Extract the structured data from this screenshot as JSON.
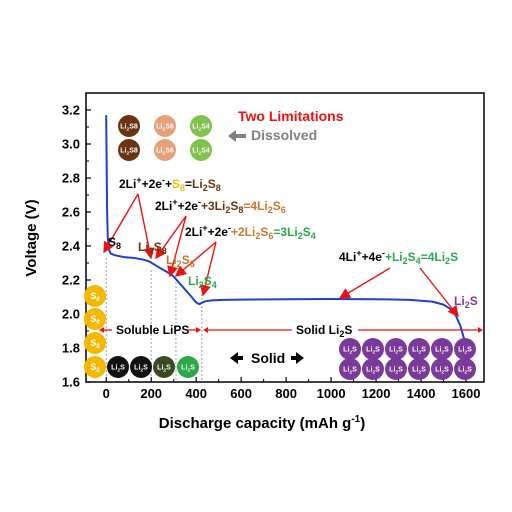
{
  "chart_data": {
    "type": "line",
    "title": "",
    "xlabel": "Discharge capacity (mAh g",
    "xlabel_sup": "-1",
    "xlabel_tail": ")",
    "ylabel": "Voltage (V)",
    "xlim": [
      -90,
      1680
    ],
    "ylim": [
      1.6,
      3.3
    ],
    "xticks": [
      0,
      200,
      400,
      600,
      800,
      1000,
      1200,
      1400,
      1600
    ],
    "yticks": [
      1.6,
      1.8,
      2.0,
      2.2,
      2.4,
      2.6,
      2.8,
      3.0,
      3.2
    ],
    "ytick_labels": [
      "1.6",
      "1.8",
      "2.0",
      "2.2",
      "2.4",
      "2.6",
      "2.8",
      "3.0",
      "3.2"
    ],
    "grid": false,
    "series": [
      {
        "color": "#1f3fd6",
        "points": [
          [
            0,
            3.17
          ],
          [
            2,
            2.85
          ],
          [
            4,
            2.6
          ],
          [
            7,
            2.45
          ],
          [
            12,
            2.38
          ],
          [
            20,
            2.355
          ],
          [
            40,
            2.345
          ],
          [
            80,
            2.335
          ],
          [
            120,
            2.33
          ],
          [
            160,
            2.322
          ],
          [
            190,
            2.31
          ],
          [
            215,
            2.29
          ],
          [
            240,
            2.27
          ],
          [
            260,
            2.255
          ],
          [
            280,
            2.24
          ],
          [
            300,
            2.22
          ],
          [
            320,
            2.19
          ],
          [
            340,
            2.16
          ],
          [
            360,
            2.13
          ],
          [
            380,
            2.1
          ],
          [
            395,
            2.075
          ],
          [
            405,
            2.063
          ],
          [
            415,
            2.058
          ],
          [
            425,
            2.066
          ],
          [
            440,
            2.075
          ],
          [
            470,
            2.08
          ],
          [
            520,
            2.083
          ],
          [
            600,
            2.085
          ],
          [
            800,
            2.087
          ],
          [
            1000,
            2.088
          ],
          [
            1200,
            2.087
          ],
          [
            1350,
            2.083
          ],
          [
            1450,
            2.073
          ],
          [
            1500,
            2.055
          ],
          [
            1530,
            2.03
          ],
          [
            1555,
            1.99
          ],
          [
            1575,
            1.93
          ],
          [
            1590,
            1.86
          ],
          [
            1600,
            1.79
          ]
        ]
      }
    ],
    "guide_lines_x": [
      0,
      200,
      310,
      425
    ]
  },
  "annotations": {
    "two_limitations": "Two Limitations",
    "dissolved": "Dissolved",
    "solid": "Solid",
    "soluble": "Soluble LiPS",
    "solid_li2s_main": "Solid Li",
    "solid_li2s_sub": "2",
    "solid_li2s_tail": "S",
    "colors": {
      "red": "#ee1111",
      "gray": "#808080",
      "s8_yellow": "#f5b800",
      "li2s8_brown": "#6b3410",
      "li2s6_orange": "#c8772c",
      "li2s4_green": "#2aa84a",
      "li2s_purple": "#7a3a9a"
    },
    "species": {
      "s8": [
        "S",
        "8"
      ],
      "li2s8": [
        "Li",
        "2",
        "S",
        "8"
      ],
      "li2s6": [
        "Li",
        "2",
        "S",
        "6"
      ],
      "li2s4": [
        "Li",
        "2",
        "S",
        "4"
      ],
      "li2s": [
        "Li",
        "2",
        "S"
      ]
    },
    "reactions": [
      {
        "parts": [
          [
            "2Li",
            "#000000"
          ],
          [
            "+",
            "#000000",
            "sup"
          ],
          [
            "+2e",
            "#000000"
          ],
          [
            "-",
            "#000000",
            "sup"
          ],
          [
            "+",
            "#000000"
          ],
          [
            "S",
            "#f5b800"
          ],
          [
            "8",
            "#f5b800",
            "sub"
          ],
          [
            "=",
            "#000000"
          ],
          [
            "Li",
            "#6b3410"
          ],
          [
            "2",
            "#6b3410",
            "sub"
          ],
          [
            "S",
            "#6b3410"
          ],
          [
            "8",
            "#6b3410",
            "sub"
          ]
        ]
      },
      {
        "parts": [
          [
            "2Li",
            "#000000"
          ],
          [
            "+",
            "#000000",
            "sup"
          ],
          [
            "+2e",
            "#000000"
          ],
          [
            "-",
            "#000000",
            "sup"
          ],
          [
            "+3Li",
            "#6b3410"
          ],
          [
            "2",
            "#6b3410",
            "sub"
          ],
          [
            "S",
            "#6b3410"
          ],
          [
            "8",
            "#6b3410",
            "sub"
          ],
          [
            "=4Li",
            "#c8772c"
          ],
          [
            "2",
            "#c8772c",
            "sub"
          ],
          [
            "S",
            "#c8772c"
          ],
          [
            "6",
            "#c8772c",
            "sub"
          ]
        ]
      },
      {
        "parts": [
          [
            "2Li",
            "#000000"
          ],
          [
            "+",
            "#000000",
            "sup"
          ],
          [
            "+2e",
            "#000000"
          ],
          [
            "-",
            "#000000",
            "sup"
          ],
          [
            "+2Li",
            "#c8772c"
          ],
          [
            "2",
            "#c8772c",
            "sub"
          ],
          [
            "S",
            "#c8772c"
          ],
          [
            "6",
            "#c8772c",
            "sub"
          ],
          [
            "=3Li",
            "#2aa84a"
          ],
          [
            "2",
            "#2aa84a",
            "sub"
          ],
          [
            "S",
            "#2aa84a"
          ],
          [
            "4",
            "#2aa84a",
            "sub"
          ]
        ]
      },
      {
        "parts": [
          [
            "4Li",
            "#000000"
          ],
          [
            "+",
            "#000000",
            "sup"
          ],
          [
            "+4e",
            "#000000"
          ],
          [
            "-",
            "#000000",
            "sup"
          ],
          [
            "+Li",
            "#2aa84a"
          ],
          [
            "2",
            "#2aa84a",
            "sub"
          ],
          [
            "S",
            "#2aa84a"
          ],
          [
            "4",
            "#2aa84a",
            "sub"
          ],
          [
            "=4Li",
            "#2aa84a"
          ],
          [
            "2",
            "#2aa84a",
            "sub"
          ],
          [
            "S",
            "#2aa84a"
          ]
        ]
      }
    ]
  }
}
